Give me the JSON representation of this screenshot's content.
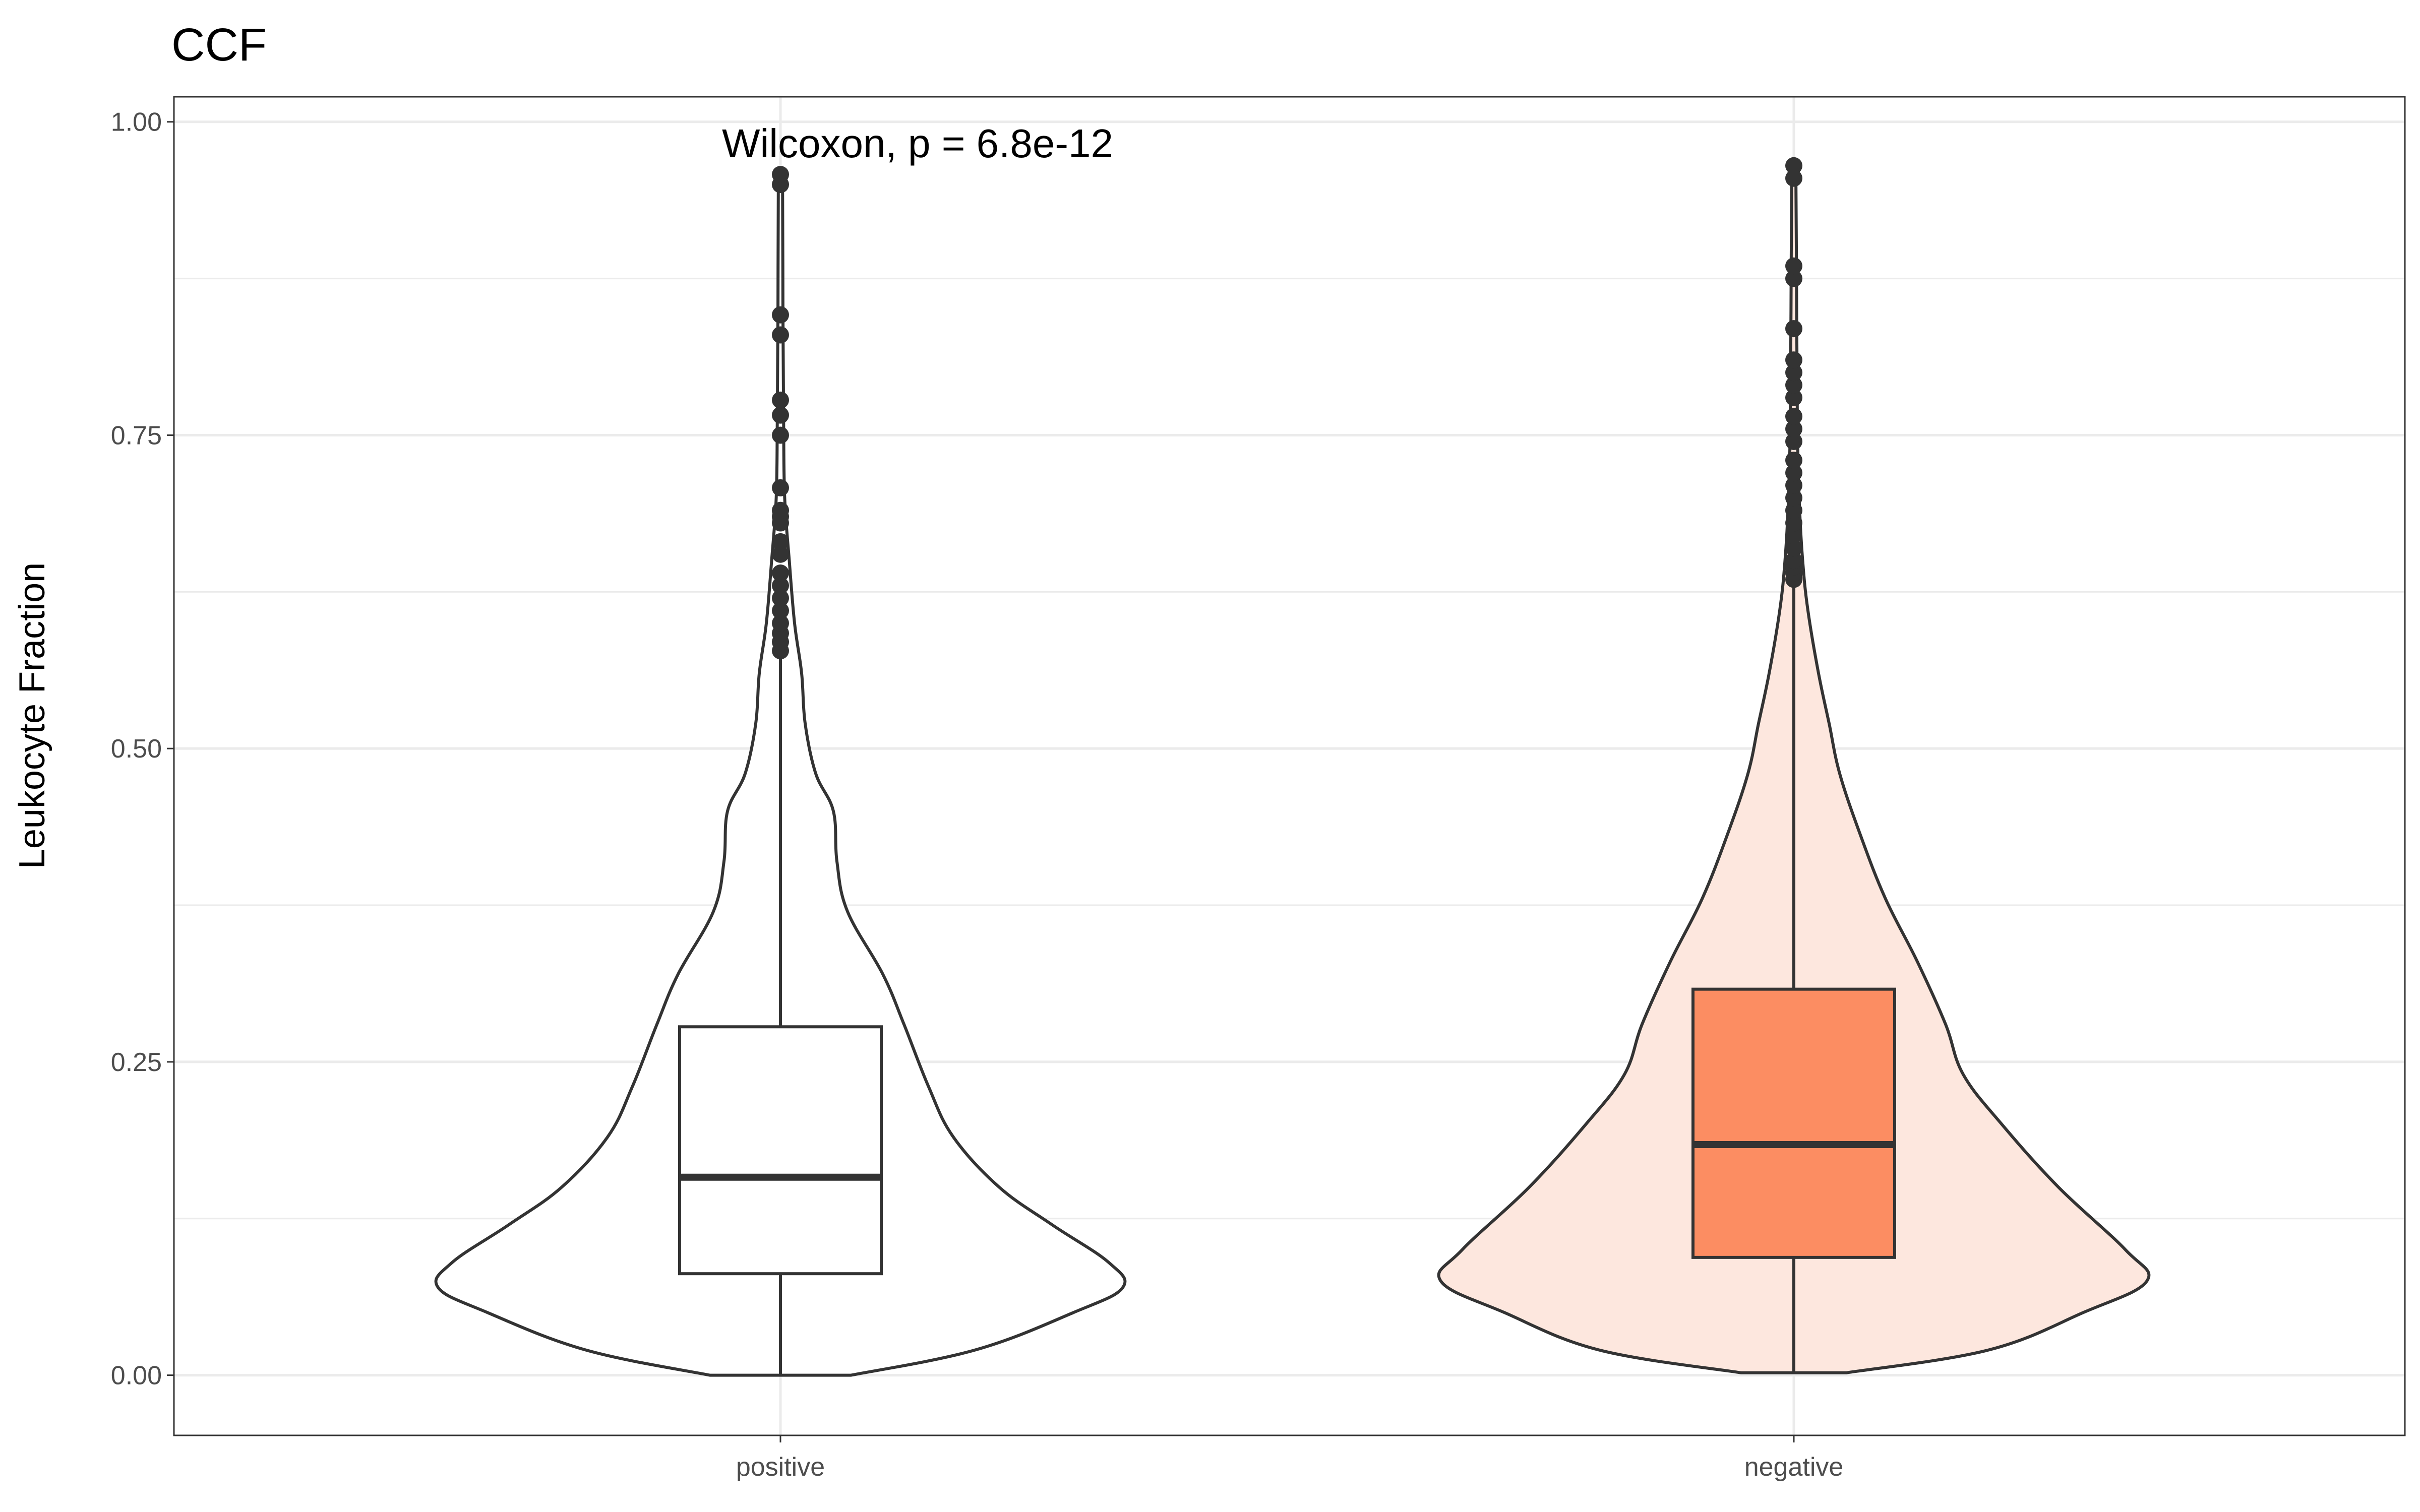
{
  "chart_data": {
    "type": "violin",
    "title": "CCF",
    "xlabel": "",
    "ylabel": "Leukocyte Fraction",
    "ylim": [
      -0.048,
      1.02
    ],
    "y_ticks": [
      0.0,
      0.25,
      0.5,
      0.75,
      1.0
    ],
    "y_tick_labels": [
      "0.00",
      "0.25",
      "0.50",
      "0.75",
      "1.00"
    ],
    "grid": true,
    "categories": [
      "positive",
      "negative"
    ],
    "annotation": "Wilcoxon, p = 6.8e-12",
    "series": [
      {
        "category": "positive",
        "violin_fill": "#ffffff",
        "box_fill": "#ffffff",
        "box": {
          "q1": 0.081,
          "median": 0.158,
          "q3": 0.278,
          "whisker_low": 0.0,
          "whisker_high": 0.575
        },
        "outliers": [
          0.578,
          0.585,
          0.592,
          0.6,
          0.61,
          0.62,
          0.63,
          0.64,
          0.655,
          0.665,
          0.68,
          0.685,
          0.69,
          0.708,
          0.75,
          0.766,
          0.778,
          0.83,
          0.846,
          0.95,
          0.958
        ],
        "density": [
          [
            0.0,
            0.2
          ],
          [
            0.02,
            0.55
          ],
          [
            0.05,
            0.83
          ],
          [
            0.07,
            0.97
          ],
          [
            0.09,
            0.93
          ],
          [
            0.12,
            0.77
          ],
          [
            0.15,
            0.62
          ],
          [
            0.19,
            0.49
          ],
          [
            0.23,
            0.42
          ],
          [
            0.28,
            0.35
          ],
          [
            0.32,
            0.29
          ],
          [
            0.37,
            0.19
          ],
          [
            0.41,
            0.16
          ],
          [
            0.45,
            0.15
          ],
          [
            0.48,
            0.1
          ],
          [
            0.52,
            0.07
          ],
          [
            0.56,
            0.06
          ],
          [
            0.6,
            0.04
          ],
          [
            0.65,
            0.025
          ],
          [
            0.7,
            0.012
          ],
          [
            0.76,
            0.009
          ],
          [
            0.85,
            0.007
          ],
          [
            0.95,
            0.006
          ],
          [
            0.96,
            0.0
          ]
        ]
      },
      {
        "category": "negative",
        "violin_fill": "#fde7de",
        "box_fill": "#fc8d62",
        "box": {
          "q1": 0.094,
          "median": 0.184,
          "q3": 0.308,
          "whisker_low": 0.002,
          "whisker_high": 0.632
        },
        "outliers": [
          0.635,
          0.64,
          0.645,
          0.65,
          0.66,
          0.67,
          0.68,
          0.69,
          0.7,
          0.71,
          0.72,
          0.73,
          0.745,
          0.755,
          0.765,
          0.78,
          0.79,
          0.8,
          0.81,
          0.835,
          0.875,
          0.885,
          0.955,
          0.965
        ],
        "density": [
          [
            0.002,
            0.15
          ],
          [
            0.02,
            0.55
          ],
          [
            0.05,
            0.82
          ],
          [
            0.075,
            1.0
          ],
          [
            0.1,
            0.94
          ],
          [
            0.15,
            0.75
          ],
          [
            0.2,
            0.59
          ],
          [
            0.24,
            0.48
          ],
          [
            0.28,
            0.43
          ],
          [
            0.33,
            0.35
          ],
          [
            0.38,
            0.26
          ],
          [
            0.43,
            0.19
          ],
          [
            0.48,
            0.13
          ],
          [
            0.52,
            0.1
          ],
          [
            0.56,
            0.07
          ],
          [
            0.61,
            0.04
          ],
          [
            0.65,
            0.025
          ],
          [
            0.7,
            0.015
          ],
          [
            0.76,
            0.01
          ],
          [
            0.85,
            0.008
          ],
          [
            0.95,
            0.006
          ],
          [
            0.96,
            0.0
          ]
        ]
      }
    ]
  }
}
